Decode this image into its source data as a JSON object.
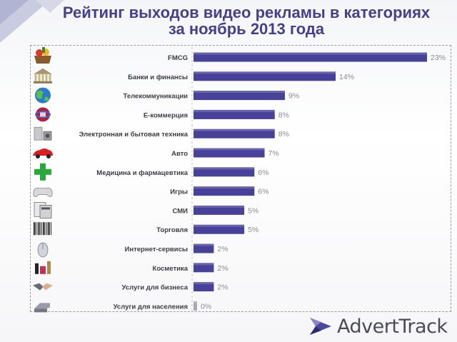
{
  "title_line1": "Рейтинг выходов видео рекламы в категориях",
  "title_line2": "за ноябрь 2013 года",
  "logo_text": "AdvertTrack",
  "colors": {
    "bar": "#48419a",
    "bar_zero": "#a9a9b3",
    "title": "#453f8e",
    "value_text": "#8a8a94",
    "label_text": "#3a3a44"
  },
  "chart_data": {
    "type": "bar",
    "orientation": "horizontal",
    "title": "Рейтинг выходов видео рекламы в категориях за ноябрь 2013 года",
    "xlabel": "",
    "ylabel": "",
    "xlim": [
      0,
      23
    ],
    "value_suffix": "%",
    "grid": false,
    "categories": [
      {
        "label": "FMCG",
        "value": 23,
        "icon": "grocery-basket-icon"
      },
      {
        "label": "Банки и финансы",
        "value": 14,
        "icon": "bank-building-icon"
      },
      {
        "label": "Телекоммуникации",
        "value": 9,
        "icon": "globe-icon"
      },
      {
        "label": "Е-коммерция",
        "value": 8,
        "icon": "globe-cart-icon"
      },
      {
        "label": "Электронная и бытовая техника",
        "value": 8,
        "icon": "appliances-icon"
      },
      {
        "label": "Авто",
        "value": 7,
        "icon": "red-car-icon"
      },
      {
        "label": "Медицина и фармацевтика",
        "value": 6,
        "icon": "pharmacy-cross-icon"
      },
      {
        "label": "Игры",
        "value": 6,
        "icon": "gamepad-icon"
      },
      {
        "label": "СМИ",
        "value": 5,
        "icon": "newspapers-icon"
      },
      {
        "label": "Торговля",
        "value": 5,
        "icon": "barcode-icon"
      },
      {
        "label": "Интернет-сервисы",
        "value": 2,
        "icon": "computer-mouse-icon"
      },
      {
        "label": "Косметика",
        "value": 2,
        "icon": "cosmetics-icon"
      },
      {
        "label": "Услуги для бизнеса",
        "value": 2,
        "icon": "handshake-icon"
      },
      {
        "label": "Услуги для населения",
        "value": 0,
        "icon": "services-hand-icon"
      }
    ]
  }
}
